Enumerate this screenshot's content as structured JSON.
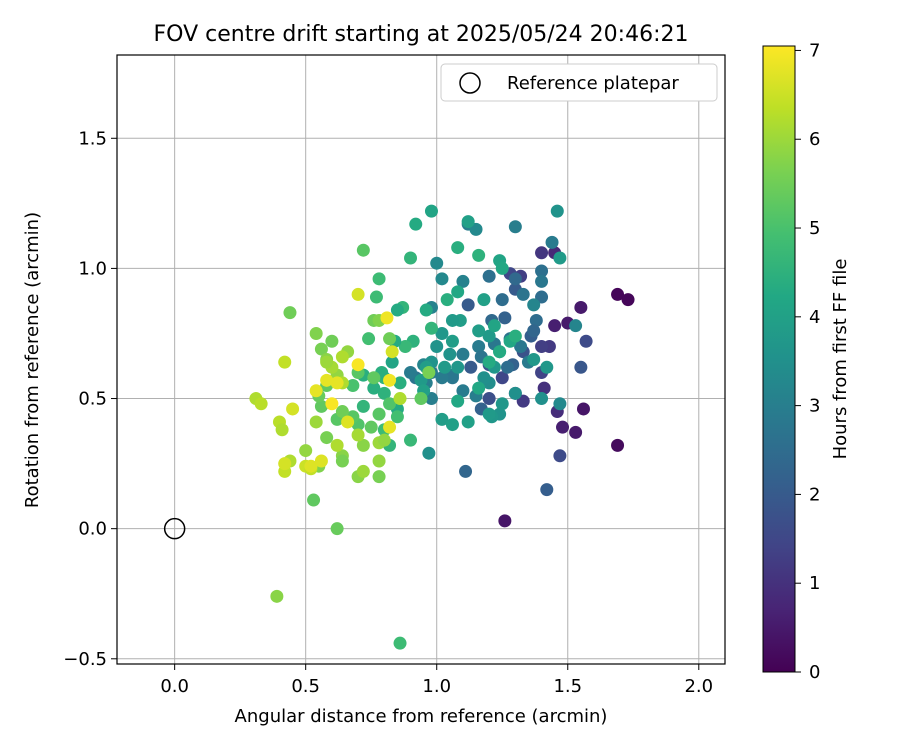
{
  "chart_data": {
    "type": "scatter",
    "title": "FOV centre drift starting at 2025/05/24 20:46:21",
    "xlabel": "Angular distance from reference (arcmin)",
    "ylabel": "Rotation from reference (arcmin)",
    "xlim": [
      -0.22,
      2.1
    ],
    "ylim": [
      -0.52,
      1.82
    ],
    "xticks": [
      0.0,
      0.5,
      1.0,
      1.5,
      2.0
    ],
    "xtick_labels": [
      "0.0",
      "0.5",
      "1.0",
      "1.5",
      "2.0"
    ],
    "yticks": [
      -0.5,
      0.0,
      0.5,
      1.0,
      1.5
    ],
    "ytick_labels": [
      "−0.5",
      "0.0",
      "0.5",
      "1.0",
      "1.5"
    ],
    "grid": true,
    "legend": {
      "location": "top-right",
      "entries": [
        {
          "label": "Reference platepar",
          "marker": "open-circle"
        }
      ]
    },
    "reference_point": {
      "x": 0.0,
      "y": 0.0
    },
    "colorbar": {
      "label": "Hours from first FF file",
      "range": [
        0,
        7.05
      ],
      "ticks": [
        0,
        1,
        2,
        3,
        4,
        5,
        6,
        7
      ],
      "tick_labels": [
        "0",
        "1",
        "2",
        "3",
        "4",
        "5",
        "6",
        "7"
      ],
      "colormap": "viridis"
    },
    "points": [
      [
        1.69,
        0.9,
        0.1
      ],
      [
        1.73,
        0.88,
        0.1
      ],
      [
        1.55,
        0.85,
        0.5
      ],
      [
        1.5,
        0.79,
        0.5
      ],
      [
        1.45,
        0.78,
        0.6
      ],
      [
        1.69,
        0.32,
        0.2
      ],
      [
        1.56,
        0.46,
        0.4
      ],
      [
        1.48,
        0.39,
        0.6
      ],
      [
        1.53,
        0.37,
        0.5
      ],
      [
        1.26,
        0.03,
        0.4
      ],
      [
        1.43,
        0.7,
        1.2
      ],
      [
        1.41,
        0.54,
        1.0
      ],
      [
        1.46,
        0.45,
        0.9
      ],
      [
        1.4,
        0.7,
        1.3
      ],
      [
        1.4,
        0.6,
        1.4
      ],
      [
        1.47,
        0.28,
        1.6
      ],
      [
        1.42,
        0.15,
        2.1
      ],
      [
        1.55,
        0.62,
        1.9
      ],
      [
        1.57,
        0.72,
        1.6
      ],
      [
        1.32,
        0.97,
        1.3
      ],
      [
        1.4,
        1.06,
        1.1
      ],
      [
        1.45,
        1.06,
        0.8
      ],
      [
        1.28,
        0.98,
        1.5
      ],
      [
        1.3,
        0.52,
        1.2
      ],
      [
        1.3,
        0.92,
        2.0
      ],
      [
        1.21,
        0.8,
        2.4
      ],
      [
        1.26,
        0.81,
        2.2
      ],
      [
        1.36,
        0.74,
        2.1
      ],
      [
        1.33,
        0.68,
        1.8
      ],
      [
        1.13,
        0.62,
        2.0
      ],
      [
        1.2,
        0.63,
        1.8
      ],
      [
        1.25,
        0.58,
        1.5
      ],
      [
        1.29,
        0.63,
        2.2
      ],
      [
        1.12,
        0.86,
        2.0
      ],
      [
        1.2,
        0.5,
        1.7
      ],
      [
        1.17,
        0.46,
        2.2
      ],
      [
        1.11,
        0.22,
        2.3
      ],
      [
        1.33,
        0.49,
        1.2
      ],
      [
        1.38,
        0.8,
        2.5
      ],
      [
        1.37,
        0.76,
        2.3
      ],
      [
        1.44,
        1.1,
        2.9
      ],
      [
        1.4,
        0.99,
        2.6
      ],
      [
        1.4,
        0.89,
        2.5
      ],
      [
        1.4,
        0.95,
        2.8
      ],
      [
        1.33,
        0.9,
        2.7
      ],
      [
        1.3,
        0.96,
        2.4
      ],
      [
        1.25,
        0.88,
        2.5
      ],
      [
        1.2,
        0.97,
        2.6
      ],
      [
        1.28,
        0.73,
        2.7
      ],
      [
        1.32,
        0.7,
        2.8
      ],
      [
        1.35,
        0.64,
        2.9
      ],
      [
        1.27,
        0.62,
        2.5
      ],
      [
        1.22,
        0.71,
        2.8
      ],
      [
        1.16,
        0.7,
        2.9
      ],
      [
        1.17,
        0.66,
        2.7
      ],
      [
        1.1,
        0.67,
        2.9
      ],
      [
        1.06,
        0.59,
        3.0
      ],
      [
        1.06,
        0.58,
        2.8
      ],
      [
        1.1,
        0.53,
        2.9
      ],
      [
        1.15,
        0.51,
        3.0
      ],
      [
        1.02,
        0.58,
        2.9
      ],
      [
        0.98,
        0.6,
        2.9
      ],
      [
        0.96,
        0.56,
        3.0
      ],
      [
        0.95,
        0.63,
        3.2
      ],
      [
        0.92,
        0.58,
        2.7
      ],
      [
        0.9,
        0.6,
        2.9
      ],
      [
        0.98,
        0.5,
        3.0
      ],
      [
        0.98,
        0.85,
        3.1
      ],
      [
        1.02,
        0.96,
        3.3
      ],
      [
        1.0,
        1.02,
        3.3
      ],
      [
        1.1,
        0.95,
        3.1
      ],
      [
        1.12,
        1.17,
        3.0
      ],
      [
        1.15,
        1.15,
        3.3
      ],
      [
        1.3,
        1.16,
        3.0
      ],
      [
        1.37,
        0.86,
        3.2
      ],
      [
        1.46,
        1.22,
        3.6
      ],
      [
        1.47,
        1.04,
        3.8
      ],
      [
        1.53,
        0.78,
        3.2
      ],
      [
        1.47,
        0.48,
        3.3
      ],
      [
        1.4,
        0.5,
        3.5
      ],
      [
        1.42,
        0.62,
        3.7
      ],
      [
        1.37,
        0.65,
        3.7
      ],
      [
        1.3,
        0.52,
        3.5
      ],
      [
        1.24,
        0.44,
        3.6
      ],
      [
        1.21,
        0.43,
        3.7
      ],
      [
        1.2,
        0.56,
        3.4
      ],
      [
        1.18,
        0.58,
        3.5
      ],
      [
        1.22,
        0.62,
        3.7
      ],
      [
        1.24,
        0.68,
        3.9
      ],
      [
        1.2,
        0.74,
        3.8
      ],
      [
        1.16,
        0.76,
        3.9
      ],
      [
        1.09,
        0.8,
        3.9
      ],
      [
        1.06,
        0.8,
        3.8
      ],
      [
        1.06,
        0.72,
        3.9
      ],
      [
        1.02,
        0.75,
        3.7
      ],
      [
        1.0,
        0.7,
        3.6
      ],
      [
        1.05,
        0.67,
        3.6
      ],
      [
        1.08,
        0.62,
        3.7
      ],
      [
        1.03,
        0.62,
        3.8
      ],
      [
        0.98,
        0.64,
        3.6
      ],
      [
        0.96,
        0.62,
        3.9
      ],
      [
        0.94,
        0.57,
        3.8
      ],
      [
        0.95,
        0.53,
        4.0
      ],
      [
        0.97,
        0.29,
        3.5
      ],
      [
        1.02,
        0.42,
        3.9
      ],
      [
        1.06,
        0.4,
        4.0
      ],
      [
        1.08,
        0.49,
        4.2
      ],
      [
        1.12,
        0.41,
        4.0
      ],
      [
        1.2,
        0.44,
        3.8
      ],
      [
        1.25,
        0.48,
        3.7
      ],
      [
        1.16,
        0.54,
        4.2
      ],
      [
        1.2,
        0.64,
        4.3
      ],
      [
        1.24,
        0.68,
        4.3
      ],
      [
        1.28,
        0.72,
        4.2
      ],
      [
        1.3,
        0.74,
        4.4
      ],
      [
        1.22,
        0.78,
        4.1
      ],
      [
        1.18,
        0.88,
        4.0
      ],
      [
        1.24,
        1.03,
        4.1
      ],
      [
        1.25,
        1.0,
        4.2
      ],
      [
        1.16,
        1.05,
        4.5
      ],
      [
        0.92,
        1.17,
        4.3
      ],
      [
        0.98,
        1.22,
        4.1
      ],
      [
        1.08,
        1.08,
        4.4
      ],
      [
        1.12,
        1.18,
        4.0
      ],
      [
        1.08,
        0.91,
        4.2
      ],
      [
        1.04,
        0.88,
        4.4
      ],
      [
        0.96,
        0.84,
        4.3
      ],
      [
        0.98,
        0.77,
        4.6
      ],
      [
        0.91,
        0.72,
        4.5
      ],
      [
        0.88,
        0.7,
        4.7
      ],
      [
        0.86,
        0.56,
        4.4
      ],
      [
        0.8,
        0.58,
        4.5
      ],
      [
        0.79,
        0.6,
        4.4
      ],
      [
        0.83,
        0.64,
        4.1
      ],
      [
        0.84,
        0.72,
        4.3
      ],
      [
        0.87,
        0.85,
        4.6
      ],
      [
        0.85,
        0.84,
        4.3
      ],
      [
        0.9,
        1.04,
        4.6
      ],
      [
        0.85,
        0.46,
        4.3
      ],
      [
        0.8,
        0.52,
        4.5
      ],
      [
        0.76,
        0.54,
        4.4
      ],
      [
        0.72,
        0.47,
        4.6
      ],
      [
        0.72,
        0.59,
        4.4
      ],
      [
        0.74,
        0.73,
        4.9
      ],
      [
        0.77,
        0.89,
        4.8
      ],
      [
        0.78,
        0.96,
        4.8
      ],
      [
        0.72,
        1.07,
        5.2
      ],
      [
        0.9,
        0.34,
        4.7
      ],
      [
        0.82,
        0.32,
        4.6
      ],
      [
        0.8,
        0.38,
        4.8
      ],
      [
        0.85,
        0.43,
        4.9
      ],
      [
        0.82,
        0.48,
        5.1
      ],
      [
        0.78,
        0.44,
        5.2
      ],
      [
        0.75,
        0.39,
        5.3
      ],
      [
        0.7,
        0.4,
        5.1
      ],
      [
        0.68,
        0.43,
        5.2
      ],
      [
        0.68,
        0.55,
        5.0
      ],
      [
        0.7,
        0.6,
        5.2
      ],
      [
        0.76,
        0.58,
        5.3
      ],
      [
        0.76,
        0.8,
        5.5
      ],
      [
        0.78,
        0.8,
        5.7
      ],
      [
        0.82,
        0.73,
        5.5
      ],
      [
        0.94,
        0.5,
        5.3
      ],
      [
        0.97,
        0.6,
        5.6
      ],
      [
        0.86,
        -0.44,
        4.8
      ],
      [
        0.62,
        0.42,
        5.2
      ],
      [
        0.56,
        0.47,
        5.3
      ],
      [
        0.55,
        0.51,
        5.4
      ],
      [
        0.58,
        0.55,
        5.3
      ],
      [
        0.64,
        0.45,
        5.5
      ],
      [
        0.62,
        0.58,
        5.6
      ],
      [
        0.56,
        0.69,
        5.6
      ],
      [
        0.58,
        0.65,
        5.8
      ],
      [
        0.6,
        0.72,
        5.5
      ],
      [
        0.54,
        0.75,
        5.7
      ],
      [
        0.44,
        0.83,
        5.5
      ],
      [
        0.62,
        0.0,
        5.4
      ],
      [
        0.53,
        0.11,
        5.3
      ],
      [
        0.39,
        -0.26,
        5.8
      ],
      [
        0.55,
        0.24,
        5.7
      ],
      [
        0.58,
        0.35,
        5.6
      ],
      [
        0.5,
        0.3,
        5.9
      ],
      [
        0.64,
        0.28,
        5.8
      ],
      [
        0.64,
        0.26,
        5.6
      ],
      [
        0.72,
        0.32,
        5.8
      ],
      [
        0.7,
        0.2,
        5.8
      ],
      [
        0.72,
        0.22,
        6.0
      ],
      [
        0.78,
        0.2,
        5.6
      ],
      [
        0.78,
        0.26,
        5.9
      ],
      [
        0.78,
        0.33,
        6.0
      ],
      [
        0.8,
        0.34,
        5.9
      ],
      [
        0.7,
        0.36,
        6.1
      ],
      [
        0.62,
        0.32,
        6.2
      ],
      [
        0.62,
        0.59,
        5.9
      ],
      [
        0.6,
        0.62,
        6.1
      ],
      [
        0.64,
        0.56,
        6.2
      ],
      [
        0.58,
        0.64,
        6.0
      ],
      [
        0.66,
        0.68,
        5.9
      ],
      [
        0.64,
        0.66,
        6.2
      ],
      [
        0.54,
        0.41,
        6.0
      ],
      [
        0.44,
        0.26,
        6.2
      ],
      [
        0.42,
        0.22,
        6.4
      ],
      [
        0.4,
        0.41,
        6.3
      ],
      [
        0.41,
        0.38,
        6.2
      ],
      [
        0.31,
        0.5,
        6.2
      ],
      [
        0.33,
        0.48,
        6.3
      ],
      [
        0.42,
        0.64,
        6.4
      ],
      [
        0.45,
        0.46,
        6.6
      ],
      [
        0.5,
        0.24,
        6.5
      ],
      [
        0.52,
        0.23,
        6.4
      ],
      [
        0.56,
        0.26,
        6.7
      ],
      [
        0.82,
        0.57,
        6.9
      ],
      [
        0.82,
        0.39,
        6.8
      ],
      [
        0.66,
        0.41,
        6.7
      ],
      [
        0.62,
        0.56,
        6.8
      ],
      [
        0.58,
        0.57,
        6.8
      ],
      [
        0.54,
        0.53,
        6.8
      ],
      [
        0.6,
        0.48,
        7.0
      ],
      [
        0.7,
        0.63,
        7.0
      ],
      [
        0.7,
        0.9,
        6.6
      ],
      [
        0.81,
        0.81,
        6.9
      ],
      [
        0.83,
        0.68,
        6.6
      ],
      [
        0.42,
        0.25,
        6.6
      ],
      [
        0.52,
        0.24,
        6.7
      ],
      [
        0.86,
        0.5,
        6.2
      ]
    ]
  }
}
